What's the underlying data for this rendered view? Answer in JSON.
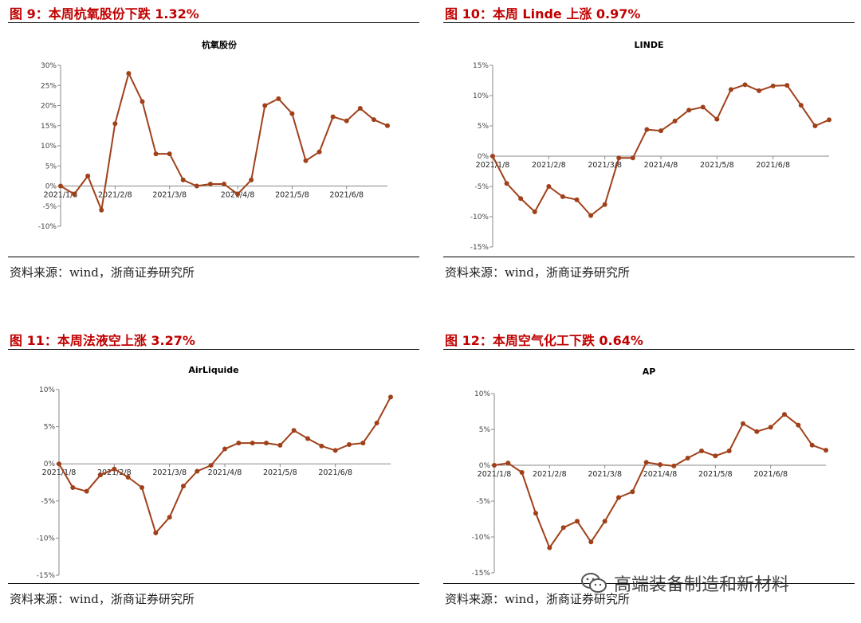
{
  "colors": {
    "line": "#A0401A",
    "title_red": "#c00000",
    "axis": "#888888"
  },
  "watermark": {
    "icon": "wechat-icon",
    "text": "高端装备制造和新材料"
  },
  "chart_data": [
    {
      "type": "line",
      "figure_title": "图 9：本周杭氧股份下跌 1.32%",
      "title": "杭氧股份",
      "source": "资料来源：wind，浙商证券研究所",
      "ylim": [
        -10,
        30
      ],
      "yticks": [
        -10,
        -5,
        0,
        5,
        10,
        15,
        20,
        25,
        30
      ],
      "ytick_labels": [
        "-10%",
        "-5%",
        "0%",
        "5%",
        "10%",
        "15%",
        "20%",
        "25%",
        "30%"
      ],
      "xtick_labels": [
        "2021/1/8",
        "2021/2/8",
        "2021/3/8",
        "2021/4/8",
        "2021/5/8",
        "2021/6/8"
      ],
      "xtick_index": [
        0,
        4,
        8,
        13,
        17,
        21
      ],
      "values": [
        0,
        -2,
        2.5,
        -6,
        15.5,
        28,
        21,
        8,
        8,
        1.5,
        0,
        0.5,
        0.5,
        -2,
        1.5,
        20,
        21.7,
        18,
        6.3,
        8.5,
        17.2,
        16.2,
        19.3,
        16.5,
        15
      ]
    },
    {
      "type": "line",
      "figure_title": "图 10：本周 Linde 上涨 0.97%",
      "title": "LINDE",
      "source": "资料来源：wind，浙商证券研究所",
      "ylim": [
        -15,
        15
      ],
      "yticks": [
        -15,
        -10,
        -5,
        0,
        5,
        10,
        15
      ],
      "ytick_labels": [
        "-15%",
        "-10%",
        "-5%",
        "0%",
        "5%",
        "10%",
        "15%"
      ],
      "xtick_labels": [
        "2021/1/8",
        "2021/2/8",
        "2021/3/8",
        "2021/4/8",
        "2021/5/8",
        "2021/6/8"
      ],
      "xtick_index": [
        0,
        4,
        8,
        12,
        16,
        20
      ],
      "values": [
        0,
        -4.5,
        -7,
        -9.2,
        -5,
        -6.7,
        -7.2,
        -9.8,
        -8,
        -0.3,
        -0.3,
        4.4,
        4.2,
        5.8,
        7.6,
        8.1,
        6.1,
        11,
        11.8,
        10.8,
        11.6,
        11.7,
        8.4,
        5,
        6
      ]
    },
    {
      "type": "line",
      "figure_title": "图 11：本周法液空上涨 3.27%",
      "title": "AirLiquide",
      "source": "资料来源：wind，浙商证券研究所",
      "ylim": [
        -15,
        10
      ],
      "yticks": [
        -15,
        -10,
        -5,
        0,
        5,
        10
      ],
      "ytick_labels": [
        "-15%",
        "-10%",
        "-5%",
        "0%",
        "5%",
        "10%"
      ],
      "xtick_labels": [
        "2021/1/8",
        "2021/2/8",
        "2021/3/8",
        "2021/4/8",
        "2021/5/8",
        "2021/6/8"
      ],
      "xtick_index": [
        0,
        4,
        8,
        12,
        16,
        20
      ],
      "values": [
        0,
        -3.2,
        -3.7,
        -1.5,
        -0.7,
        -1.8,
        -3.2,
        -9.3,
        -7.2,
        -3,
        -1,
        -0.2,
        2,
        2.8,
        2.8,
        2.8,
        2.5,
        4.5,
        3.4,
        2.4,
        1.8,
        2.6,
        2.8,
        5.5,
        9
      ]
    },
    {
      "type": "line",
      "figure_title": "图 12：本周空气化工下跌 0.64%",
      "title": "AP",
      "source": "资料来源：wind，浙商证券研究所",
      "ylim": [
        -15,
        10
      ],
      "yticks": [
        -15,
        -10,
        -5,
        0,
        5,
        10
      ],
      "ytick_labels": [
        "-15%",
        "-10%",
        "-5%",
        "0%",
        "5%",
        "10%"
      ],
      "xtick_labels": [
        "2021/1/8",
        "2021/2/8",
        "2021/3/8",
        "2021/4/8",
        "2021/5/8",
        "2021/6/8"
      ],
      "xtick_index": [
        0,
        4,
        8,
        12,
        16,
        20
      ],
      "values": [
        0,
        0.3,
        -1,
        -6.7,
        -11.5,
        -8.7,
        -7.8,
        -10.7,
        -7.8,
        -4.5,
        -3.7,
        0.4,
        0.1,
        -0.1,
        1,
        2,
        1.3,
        2,
        5.8,
        4.7,
        5.3,
        7.1,
        5.6,
        2.8,
        2.1
      ]
    }
  ]
}
